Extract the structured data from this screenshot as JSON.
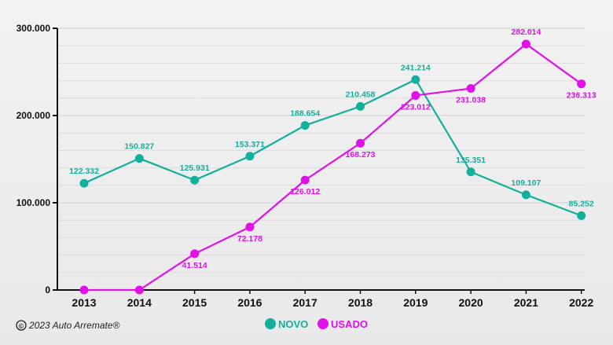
{
  "chart_data": {
    "type": "line",
    "x": [
      "2013",
      "2014",
      "2015",
      "2016",
      "2017",
      "2018",
      "2019",
      "2020",
      "2021",
      "2022"
    ],
    "ylim": [
      0,
      300000
    ],
    "y_ticks": [
      {
        "value": 0,
        "label": "0"
      },
      {
        "value": 100000,
        "label": "100.000"
      },
      {
        "value": 200000,
        "label": "200.000"
      },
      {
        "value": 300000,
        "label": "300.000"
      }
    ],
    "grid": true,
    "legend_position": "bottom-center",
    "series": [
      {
        "name": "NOVO",
        "color": "#12b09a",
        "values": [
          122332,
          150827,
          125931,
          153371,
          188654,
          210458,
          241214,
          135351,
          109107,
          85252
        ],
        "labels": [
          "122.332",
          "150.827",
          "125.931",
          "153.371",
          "188.654",
          "210.458",
          "241.214",
          "135.351",
          "109.107",
          "85.252"
        ],
        "label_side": [
          "above",
          "above",
          "above",
          "above",
          "above",
          "above",
          "above",
          "above",
          "above",
          "above"
        ]
      },
      {
        "name": "USADO",
        "color": "#e010e8",
        "values": [
          0,
          0,
          41514,
          72178,
          126012,
          168273,
          223012,
          231038,
          282014,
          236313
        ],
        "labels": [
          "",
          "",
          "41.514",
          "72.178",
          "126.012",
          "168.273",
          "223.012",
          "231.038",
          "282.014",
          "236.313"
        ],
        "label_side": [
          "below",
          "below",
          "below",
          "below",
          "below",
          "below",
          "below",
          "below",
          "above",
          "below"
        ]
      }
    ]
  },
  "footer": {
    "copyright_symbol": "©",
    "copyright_text": "2023 Auto Arremate®"
  }
}
